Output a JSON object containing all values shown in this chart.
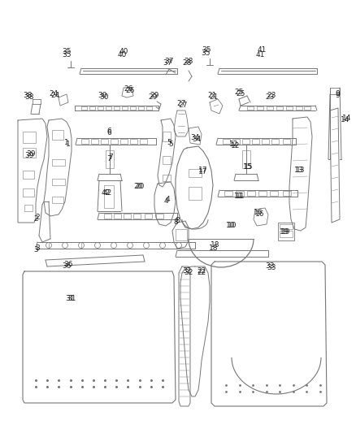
{
  "bg_color": "#ffffff",
  "line_color": "#777777",
  "label_color": "#222222",
  "fig_width": 4.38,
  "fig_height": 5.33,
  "dpi": 100
}
